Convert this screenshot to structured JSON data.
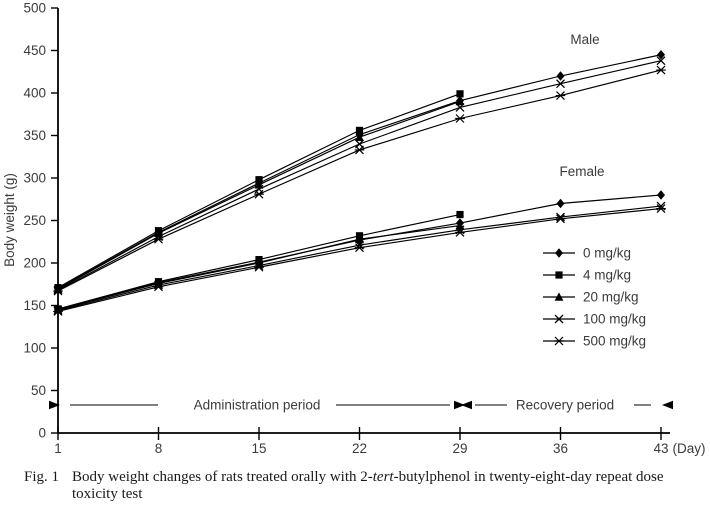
{
  "figure": {
    "caption": {
      "label": "Fig. 1",
      "text_before_italic": "Body weight changes of rats treated orally with 2-",
      "italic_word": "tert",
      "text_after_italic": "-butylphenol in twenty-eight-day repeat dose",
      "line2": "toxicity test"
    }
  },
  "chart_data": {
    "type": "line",
    "title": "",
    "ylabel": "Body weight (g)",
    "x_unit_label": "(Day)",
    "x": [
      1,
      8,
      15,
      22,
      29,
      36,
      43
    ],
    "ylim": [
      0,
      500
    ],
    "ytick_step": 50,
    "grid": false,
    "legend_position": "right-middle",
    "line_color": "#000000",
    "text_color": "#3b3b3b",
    "legend": [
      {
        "label": "0 mg/kg",
        "marker": "diamond"
      },
      {
        "label": "4 mg/kg",
        "marker": "square"
      },
      {
        "label": "20 mg/kg",
        "marker": "triangle"
      },
      {
        "label": "100 mg/kg",
        "marker": "x"
      },
      {
        "label": "500 mg/kg",
        "marker": "asterisk"
      }
    ],
    "series": [
      {
        "sex": "Male",
        "name": "0 mg/kg",
        "marker": "diamond",
        "values": [
          170,
          236,
          294,
          351,
          391,
          420,
          445
        ]
      },
      {
        "sex": "Male",
        "name": "4 mg/kg",
        "marker": "square",
        "values": [
          171,
          238,
          298,
          356,
          399,
          null,
          null
        ]
      },
      {
        "sex": "Male",
        "name": "20 mg/kg",
        "marker": "triangle",
        "values": [
          169,
          235,
          292,
          348,
          390,
          null,
          null
        ]
      },
      {
        "sex": "Male",
        "name": "100 mg/kg",
        "marker": "x",
        "values": [
          168,
          231,
          287,
          340,
          383,
          411,
          438
        ]
      },
      {
        "sex": "Male",
        "name": "500 mg/kg",
        "marker": "asterisk",
        "values": [
          167,
          228,
          281,
          333,
          370,
          397,
          427
        ]
      },
      {
        "sex": "Female",
        "name": "0 mg/kg",
        "marker": "diamond",
        "values": [
          145,
          177,
          201,
          227,
          247,
          270,
          280
        ]
      },
      {
        "sex": "Female",
        "name": "4 mg/kg",
        "marker": "square",
        "values": [
          146,
          178,
          204,
          232,
          257,
          null,
          null
        ]
      },
      {
        "sex": "Female",
        "name": "20 mg/kg",
        "marker": "triangle",
        "values": [
          145,
          176,
          200,
          228,
          244,
          null,
          null
        ]
      },
      {
        "sex": "Female",
        "name": "100 mg/kg",
        "marker": "x",
        "values": [
          144,
          174,
          197,
          221,
          239,
          254,
          267
        ]
      },
      {
        "sex": "Female",
        "name": "500 mg/kg",
        "marker": "asterisk",
        "values": [
          143,
          172,
          195,
          218,
          236,
          252,
          264
        ]
      }
    ],
    "annotations": {
      "male_label": "Male",
      "female_label": "Female",
      "administration_label": "Administration period",
      "recovery_label": "Recovery period",
      "administration_span_days": [
        1,
        29
      ],
      "recovery_span_days": [
        29,
        43
      ]
    }
  }
}
